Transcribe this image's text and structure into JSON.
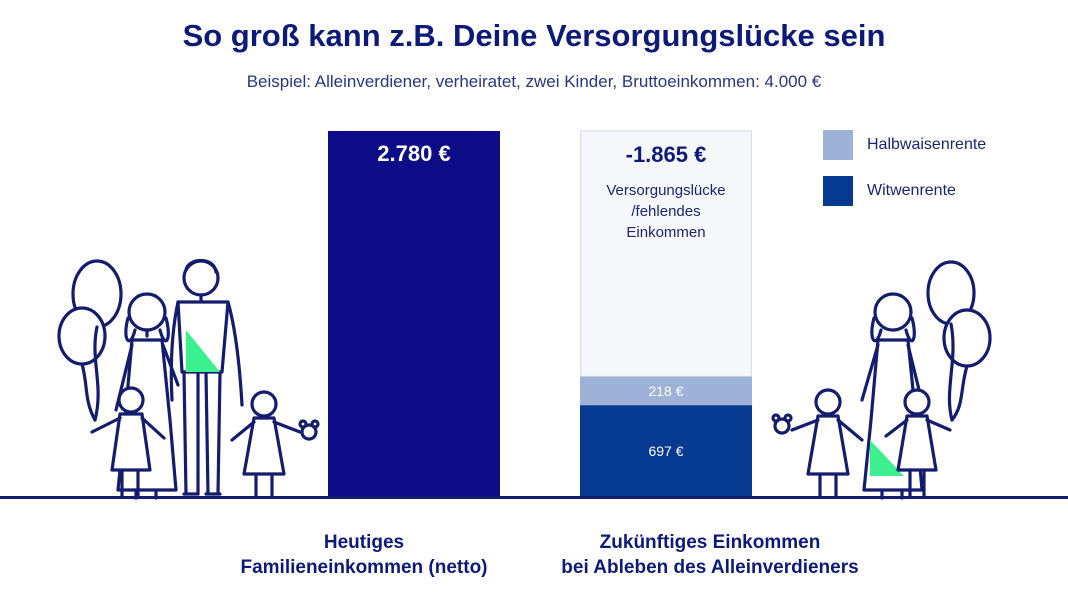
{
  "page": {
    "title": "So groß kann z.B. Deine Versorgungslücke sein",
    "subtitle": "Beispiel: Alleinverdiener, verheiratet, zwei Kinder, Bruttoeinkommen: 4.000 €"
  },
  "colors": {
    "navy": "#0d0d87",
    "witwenrente": "#063990",
    "halbwaisenrente": "#9eb2d8",
    "gap_fill": "#f6f7fb",
    "gap_border": "#dfe2ea",
    "accent_green": "#3cf08f",
    "line": "#141c6e"
  },
  "chart_data": {
    "type": "bar",
    "stacked": true,
    "categories": [
      "Heutiges Familieneinkommen (netto)",
      "Zukünftiges Einkommen bei Ableben des Alleinverdieners"
    ],
    "category_lines": [
      [
        "Heutiges",
        "Familieneinkommen (netto)"
      ],
      [
        "Zukünftiges Einkommen",
        "bei Ableben des Alleinverdieners"
      ]
    ],
    "ylim": [
      0,
      2780
    ],
    "bars": [
      {
        "category": "Heutiges Familieneinkommen (netto)",
        "total_label": "2.780 €",
        "segments": [
          {
            "value": 2780,
            "label": "",
            "kind": "income"
          }
        ]
      },
      {
        "category": "Zukünftiges Einkommen bei Ableben des Alleinverdieners",
        "segments": [
          {
            "name": "Witwenrente",
            "value": 697,
            "label": "697 €",
            "kind": "witwenrente"
          },
          {
            "name": "Halbwaisenrente",
            "value": 218,
            "label": "218 €",
            "kind": "halbwaisenrente"
          },
          {
            "name": "Versorgungslücke /fehlendes Einkommen",
            "value": 1865,
            "label": "-1.865 €",
            "kind": "gap"
          }
        ],
        "gap_caption_lines": [
          "Versorgungslücke",
          "/fehlendes",
          "Einkommen"
        ]
      }
    ],
    "legend": {
      "position": "top-right",
      "entries": [
        {
          "label": "Halbwaisenrente",
          "kind": "halbwaisenrente"
        },
        {
          "label": "Witwenrente",
          "kind": "witwenrente"
        }
      ]
    }
  }
}
